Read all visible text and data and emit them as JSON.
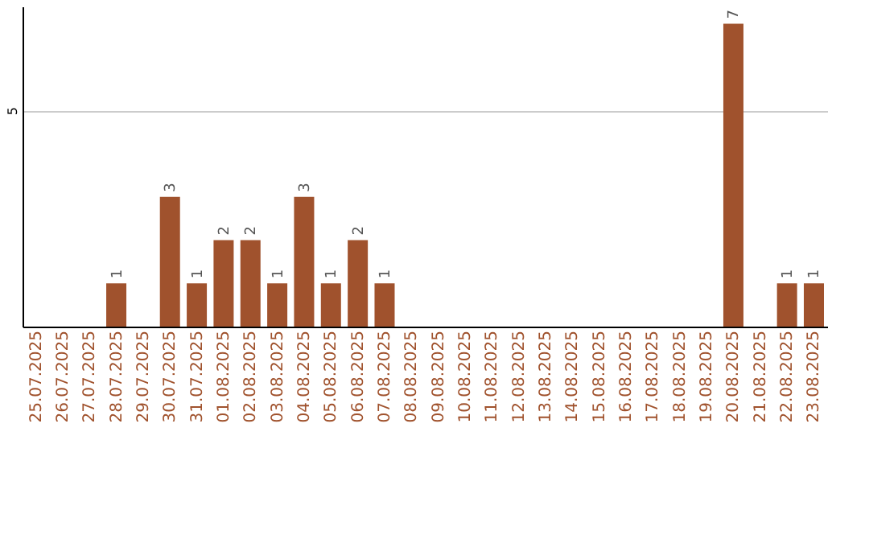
{
  "chart_data": {
    "type": "bar",
    "categories": [
      "25.07.2025",
      "26.07.2025",
      "27.07.2025",
      "28.07.2025",
      "29.07.2025",
      "30.07.2025",
      "31.07.2025",
      "01.08.2025",
      "02.08.2025",
      "03.08.2025",
      "04.08.2025",
      "05.08.2025",
      "06.08.2025",
      "07.08.2025",
      "08.08.2025",
      "09.08.2025",
      "10.08.2025",
      "11.08.2025",
      "12.08.2025",
      "13.08.2025",
      "14.08.2025",
      "15.08.2025",
      "16.08.2025",
      "17.08.2025",
      "18.08.2025",
      "19.08.2025",
      "20.08.2025",
      "21.08.2025",
      "22.08.2025",
      "23.08.2025"
    ],
    "values": [
      0,
      0,
      0,
      1,
      0,
      3,
      1,
      2,
      2,
      1,
      3,
      1,
      2,
      1,
      0,
      0,
      0,
      0,
      0,
      0,
      0,
      0,
      0,
      0,
      0,
      0,
      7,
      0,
      1,
      1
    ],
    "value_labels": [
      null,
      null,
      null,
      "1",
      null,
      "3",
      "1",
      "2",
      "2",
      "1",
      "3",
      "1",
      "2",
      "1",
      null,
      null,
      null,
      null,
      null,
      null,
      null,
      null,
      null,
      null,
      null,
      null,
      "7",
      null,
      "1",
      "1"
    ],
    "color": "#a0522d",
    "ylim": [
      0,
      7.4
    ],
    "yticks": [
      5
    ],
    "grid": "y"
  }
}
